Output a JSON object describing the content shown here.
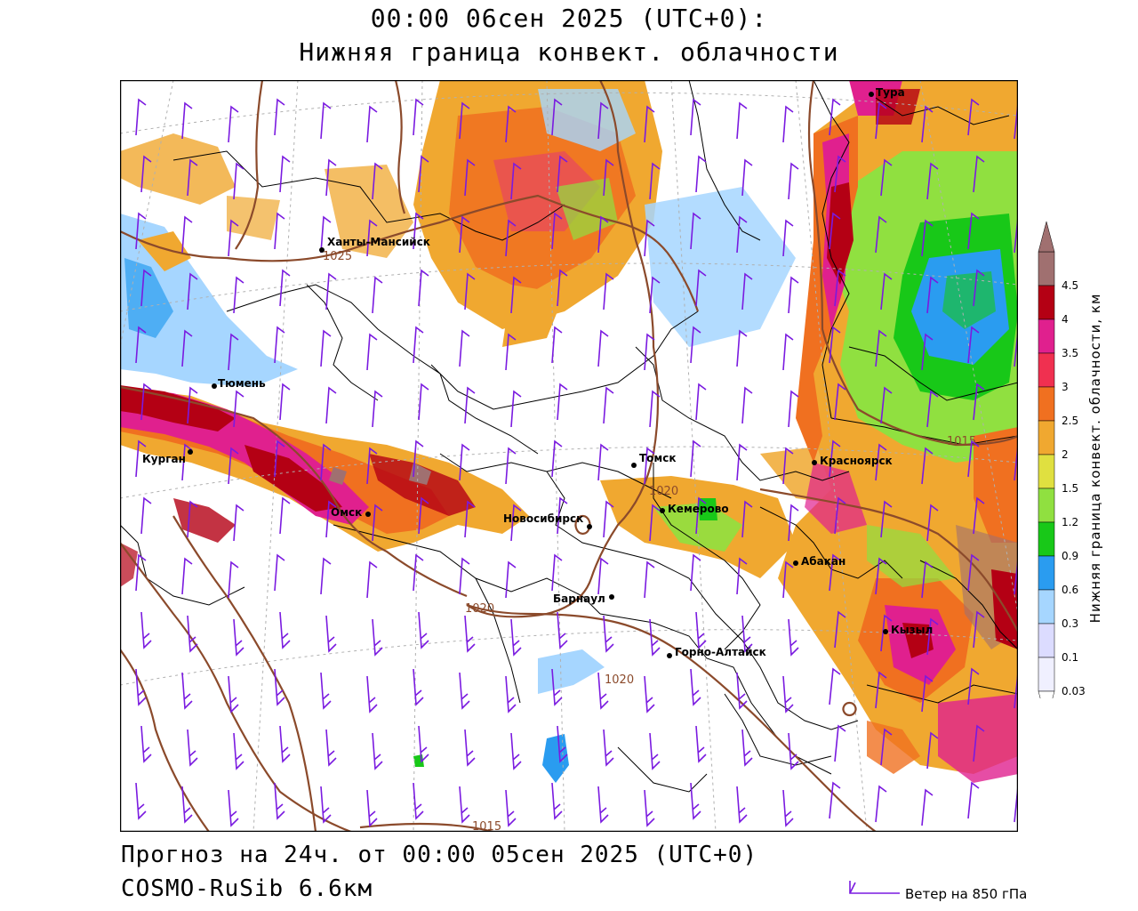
{
  "header": {
    "title_line1": "00:00 06сен 2025 (UTC+0):",
    "title_line2": "Нижняя граница конвект. облачности"
  },
  "footer": {
    "forecast": "Прогноз на 24ч. от 00:00 05сен 2025 (UTC+0)",
    "model": "COSMO-RuSib 6.6км",
    "wind_label": "Ветер на 850 гПа"
  },
  "legend": {
    "title": "Нижняя граница конвект. облачности, км",
    "levels": [
      "0.03",
      "0.1",
      "0.3",
      "0.6",
      "0.9",
      "1.2",
      "1.5",
      "2",
      "2.5",
      "3",
      "3.5",
      "4",
      "4.5"
    ],
    "colors": [
      "#f0f0ff",
      "#dcdcff",
      "#a6d6ff",
      "#2a9cf0",
      "#18c818",
      "#90e040",
      "#e0e040",
      "#f0a830",
      "#f07020",
      "#f03050",
      "#e0208e",
      "#b40014",
      "#a07070"
    ]
  },
  "map": {
    "cities": [
      {
        "name": "Тура"
      },
      {
        "name": "Ханты-Мансийск"
      },
      {
        "name": "Тюмень"
      },
      {
        "name": "Курган"
      },
      {
        "name": "Омск"
      },
      {
        "name": "Новосибирск"
      },
      {
        "name": "Томск"
      },
      {
        "name": "Кемерово"
      },
      {
        "name": "Красноярск"
      },
      {
        "name": "Абакан"
      },
      {
        "name": "Барнаул"
      },
      {
        "name": "Горно-Алтайск"
      },
      {
        "name": "Кызыл"
      }
    ],
    "isobars": [
      "1025",
      "1020",
      "1020",
      "1020",
      "1015",
      "1015"
    ],
    "colors": {
      "pressure": "#8b4a2b",
      "wind_barb": "#7a1ae0",
      "border": "#000000"
    }
  }
}
